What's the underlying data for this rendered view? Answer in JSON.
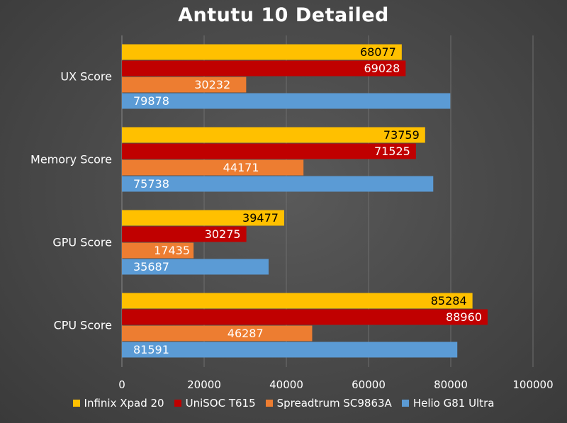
{
  "chart_data": {
    "type": "bar",
    "orientation": "horizontal",
    "title": "Antutu 10 Detailed",
    "xlabel": "",
    "ylabel": "",
    "categories": [
      "UX Score",
      "Memory Score",
      "GPU Score",
      "CPU Score"
    ],
    "series": [
      {
        "name": "Infinix Xpad 20",
        "color": "#ffc000",
        "values": [
          68077,
          73759,
          39477,
          85284
        ]
      },
      {
        "name": "UniSOC T615",
        "color": "#c00000",
        "values": [
          69028,
          71525,
          30275,
          88960
        ]
      },
      {
        "name": "Spreadtrum SC9863A",
        "color": "#ed7d31",
        "values": [
          30232,
          44171,
          17435,
          46287
        ]
      },
      {
        "name": "Helio G81 Ultra",
        "color": "#5b9bd5",
        "values": [
          79878,
          75738,
          35687,
          81591
        ]
      }
    ],
    "xlim": [
      0,
      100000
    ],
    "xticks": [
      "0",
      "20000",
      "40000",
      "60000",
      "80000",
      "100000"
    ],
    "grid": true,
    "legend_position": "bottom",
    "data_labels": true
  }
}
